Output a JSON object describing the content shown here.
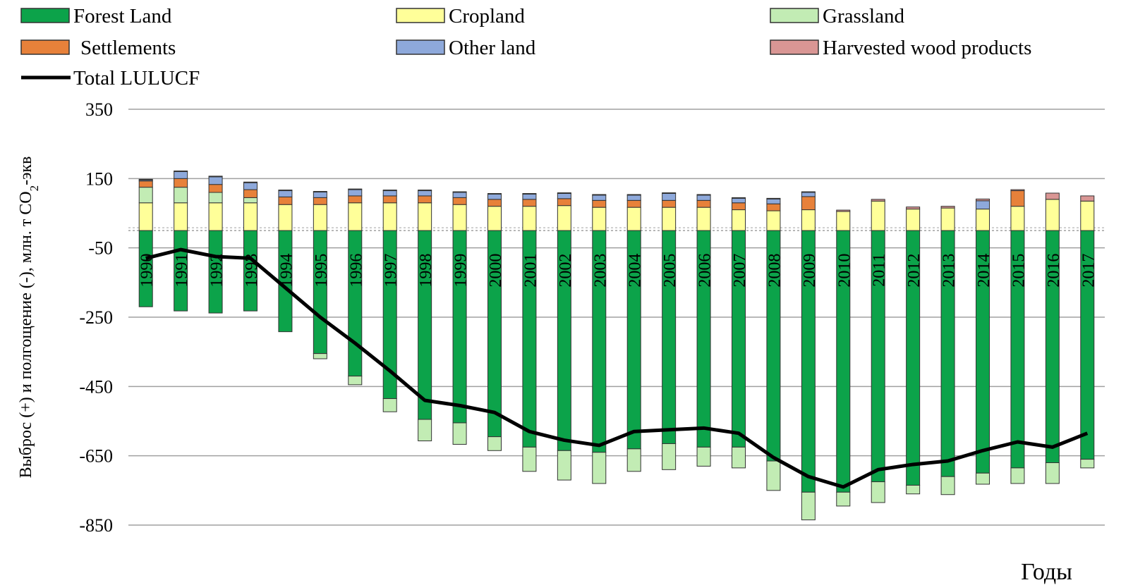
{
  "chart_data": {
    "type": "bar",
    "subtype": "stacked-bar-with-line",
    "title": "",
    "xlabel": "Годы",
    "ylabel_main": "Выброс (+) и полгощение (-), млн. т CO",
    "ylabel_sub": "2",
    "ylabel_tail": "-экв",
    "ylim": [
      -850,
      350
    ],
    "yticks": [
      "350",
      "150",
      "-50",
      "-250",
      "-450",
      "-650",
      "-850"
    ],
    "ytick_values": [
      350,
      150,
      -50,
      -250,
      -450,
      -650,
      -850
    ],
    "grid": true,
    "legend_position": "top",
    "categories": [
      "1990",
      "1991",
      "1992",
      "1993",
      "1994",
      "1995",
      "1996",
      "1997",
      "1998",
      "1999",
      "2000",
      "2001",
      "2002",
      "2003",
      "2004",
      "2005",
      "2006",
      "2007",
      "2008",
      "2009",
      "2010",
      "2011",
      "2012",
      "2013",
      "2014",
      "2015",
      "2016",
      "2017"
    ],
    "series": [
      {
        "name": "Forest Land",
        "color": "#0ca34a",
        "values": [
          -220,
          -232,
          -238,
          -232,
          -292,
          -355,
          -420,
          -485,
          -545,
          -555,
          -595,
          -625,
          -635,
          -640,
          -630,
          -615,
          -625,
          -625,
          -665,
          -755,
          -755,
          -725,
          -735,
          -710,
          -700,
          -685,
          -670,
          -660
        ]
      },
      {
        "name": "Cropland",
        "color": "#ffff99",
        "values": [
          80,
          80,
          80,
          80,
          75,
          75,
          80,
          80,
          80,
          75,
          70,
          70,
          72,
          67,
          67,
          67,
          67,
          60,
          57,
          60,
          55,
          85,
          62,
          65,
          62,
          70,
          90,
          85
        ]
      },
      {
        "name": "Grassland",
        "color": "#c2ecb4",
        "values": [
          45,
          45,
          30,
          15,
          0,
          -15,
          -25,
          -38,
          -62,
          -62,
          -40,
          -70,
          -85,
          -90,
          -65,
          -75,
          -55,
          -60,
          -85,
          -80,
          -40,
          -60,
          -25,
          -52,
          -32,
          -45,
          -60,
          -25
        ]
      },
      {
        "name": "Settlements",
        "color": "#e7813a",
        "values": [
          18,
          25,
          23,
          23,
          22,
          20,
          20,
          20,
          20,
          20,
          20,
          20,
          20,
          20,
          20,
          20,
          20,
          20,
          20,
          38,
          0,
          0,
          0,
          0,
          0,
          45,
          0,
          0
        ]
      },
      {
        "name": "Other land",
        "color": "#8ea9db",
        "values": [
          3,
          20,
          22,
          20,
          18,
          16,
          18,
          15,
          15,
          15,
          15,
          15,
          15,
          15,
          15,
          20,
          15,
          13,
          14,
          12,
          0,
          0,
          0,
          0,
          24,
          0,
          0,
          0
        ]
      },
      {
        "name": "Harvested wood products",
        "color": "#d99694",
        "values": [
          2,
          2,
          2,
          2,
          2,
          2,
          2,
          2,
          2,
          2,
          2,
          2,
          2,
          2,
          2,
          2,
          2,
          2,
          2,
          2,
          4,
          5,
          6,
          5,
          5,
          3,
          18,
          15
        ]
      },
      {
        "name": "Total LULUCF",
        "color": "#000000",
        "type": "line",
        "values": [
          -80,
          -55,
          -75,
          -80,
          -165,
          -250,
          -325,
          -405,
          -490,
          -505,
          -525,
          -580,
          -605,
          -620,
          -580,
          -575,
          -570,
          -585,
          -655,
          -710,
          -740,
          -690,
          -675,
          -665,
          -635,
          -610,
          -625,
          -585
        ]
      }
    ]
  }
}
